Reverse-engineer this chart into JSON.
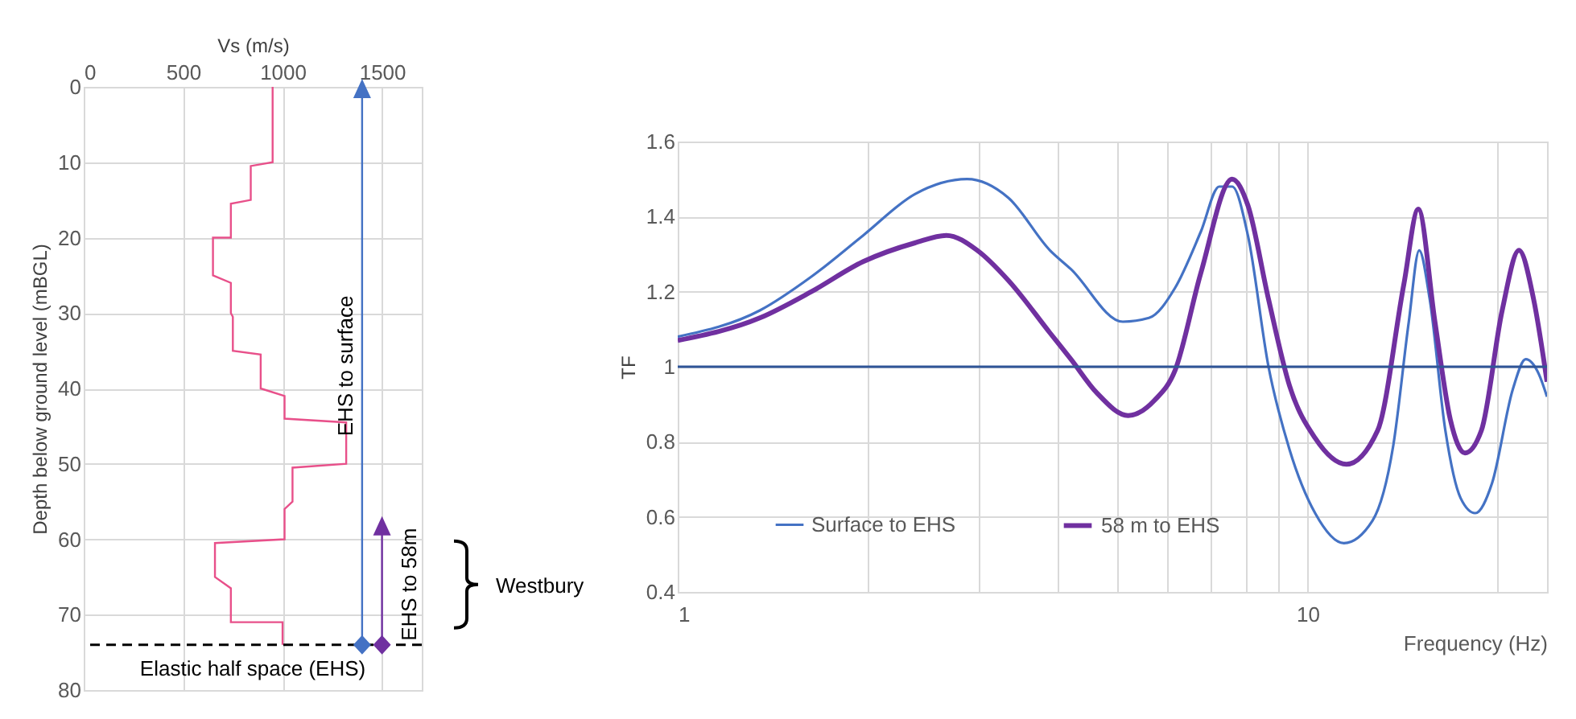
{
  "chart_data": [
    {
      "type": "line",
      "xlabel": "Vs (m/s)",
      "ylabel": "Depth below ground level (mBGL)",
      "xlim": [
        0,
        1700
      ],
      "xticks": [
        0,
        500,
        1000,
        1500
      ],
      "ylim": [
        80,
        0
      ],
      "yticks": [
        0,
        10,
        20,
        30,
        40,
        50,
        60,
        70,
        80
      ],
      "grid": true,
      "series": [
        {
          "color": "#e8508a",
          "x": [
            950,
            950,
            840,
            840,
            740,
            740,
            650,
            650,
            740,
            740,
            750,
            750,
            890,
            890,
            1010,
            1010,
            1320,
            1320,
            1050,
            1050,
            1010,
            1010,
            660,
            660,
            740,
            740,
            1000,
            1000
          ],
          "values": [
            0,
            10,
            10.5,
            15,
            15.5,
            20,
            20,
            25,
            26,
            30,
            30.5,
            35,
            35.5,
            40,
            41,
            44,
            44.5,
            50,
            50.5,
            55,
            56,
            60,
            60.5,
            65,
            66.5,
            71,
            71,
            74
          ]
        },
        {
          "name": "EHS to surface",
          "color": "#4472c4",
          "marker": "diamond",
          "x": [
            1400,
            1400
          ],
          "values": [
            74,
            0
          ]
        },
        {
          "name": "EHS to 58m",
          "color": "#7030a0",
          "marker": "diamond",
          "x": [
            1500,
            1500
          ],
          "values": [
            74,
            58
          ]
        }
      ],
      "ref_lines": [
        {
          "axis": "y",
          "value": 74,
          "label": "Elastic half space (EHS)",
          "color": "#000000",
          "line_style": "dashed"
        }
      ],
      "annotations": [
        "Westbury"
      ]
    },
    {
      "type": "line",
      "xlabel": "Frequency (Hz)",
      "ylabel": "TF",
      "xlim": [
        1,
        24
      ],
      "xticks": [
        1,
        {
          "value": 2,
          "label": null
        },
        {
          "value": 3,
          "label": null
        },
        {
          "value": 4,
          "label": null
        },
        {
          "value": 5,
          "label": null
        },
        {
          "value": 6,
          "label": null
        },
        {
          "value": 7,
          "label": null
        },
        {
          "value": 8,
          "label": null
        },
        {
          "value": 9,
          "label": null
        },
        10,
        {
          "value": 20,
          "label": null
        }
      ],
      "ylim": [
        0.4,
        1.6
      ],
      "yticks": [
        0.4,
        0.6,
        0.8,
        1,
        1.2,
        1.4,
        1.6
      ],
      "log": "x",
      "grid": true,
      "legend": "bottom",
      "series": [
        {
          "name": "Surface to EHS",
          "color": "#4472c4",
          "x": [
            1,
            1.35,
            1.63,
            1.97,
            2.38,
            2.88,
            3.35,
            3.9,
            4.21,
            5.09,
            5.6,
            6.16,
            6.77,
            7.24,
            7.59,
            8.04,
            8.67,
            9.36,
            10.28,
            11.42,
            12.68,
            13.68,
            14.48,
            15.04,
            15.63,
            16.55,
            17.5,
            18.46,
            19.63,
            21.18,
            22.2,
            23.3,
            24
          ],
          "values": [
            1.08,
            1.15,
            1.24,
            1.35,
            1.46,
            1.5,
            1.45,
            1.31,
            1.26,
            1.12,
            1.13,
            1.21,
            1.36,
            1.48,
            1.48,
            1.35,
            1.0,
            0.78,
            0.61,
            0.53,
            0.59,
            0.79,
            1.12,
            1.31,
            1.18,
            0.83,
            0.65,
            0.61,
            0.69,
            0.94,
            1.02,
            0.98,
            0.92
          ]
        },
        {
          "name": "58 m to EHS",
          "color": "#7030a0",
          "x": [
            1,
            1.35,
            1.63,
            1.97,
            2.38,
            2.67,
            2.99,
            3.35,
            3.9,
            4.21,
            4.63,
            5.19,
            5.71,
            6.16,
            6.77,
            7.59,
            8.04,
            8.67,
            9.36,
            10.28,
            11.53,
            12.92,
            14.22,
            14.99,
            15.93,
            16.85,
            17.78,
            18.88,
            20.37,
            21.66,
            22.85,
            24
          ],
          "values": [
            1.07,
            1.13,
            1.2,
            1.28,
            1.33,
            1.35,
            1.31,
            1.23,
            1.09,
            1.02,
            0.93,
            0.87,
            0.91,
            0.99,
            1.25,
            1.5,
            1.43,
            1.18,
            0.95,
            0.81,
            0.74,
            0.83,
            1.22,
            1.42,
            1.12,
            0.86,
            0.77,
            0.83,
            1.15,
            1.31,
            1.18,
            0.96
          ]
        }
      ],
      "ref_lines": [
        {
          "axis": "y",
          "value": 1,
          "color": "#2f5597"
        }
      ]
    }
  ]
}
